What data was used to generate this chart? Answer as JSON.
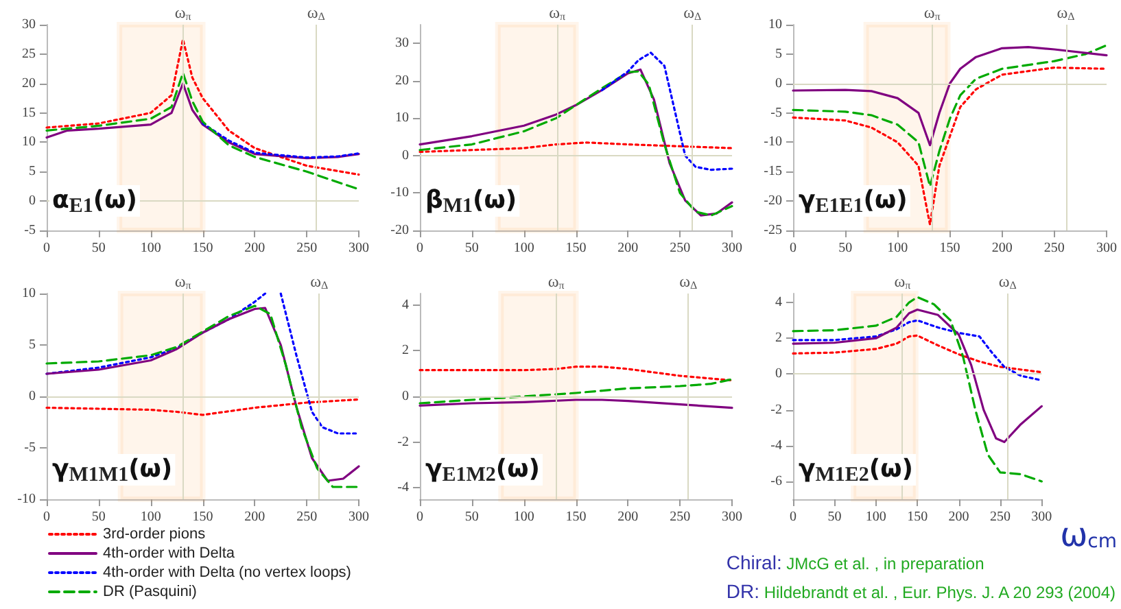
{
  "chart_data": [
    {
      "type": "line",
      "title": "α$_{E1}$(ω)",
      "marker": "none",
      "legend": "bottom",
      "xlim": [
        0,
        300
      ],
      "xticks": [
        0,
        50,
        100,
        150,
        200,
        250,
        300
      ],
      "ylim": [
        -5,
        30
      ],
      "yticks": [
        -5,
        0,
        5,
        10,
        15,
        20,
        25,
        30
      ],
      "ref_lines": [
        {
          "axis": "x",
          "value": 131,
          "label": "ω$_{π}$",
          "color": "#d9d9c3"
        },
        {
          "axis": "x",
          "value": 259,
          "label": "ω$_{Δ}$",
          "color": "#d9d9c3"
        },
        {
          "axis": "y",
          "value": 0,
          "label": null,
          "color": "#d9d9c3"
        }
      ],
      "bands": [
        {
          "axis": "x",
          "from": 70,
          "to": 150,
          "label": null,
          "color": "#ff8000"
        }
      ],
      "series": [
        {
          "name": "3rd-order pions",
          "color": "#ff0000",
          "line_style": "dotted",
          "x": [
            0,
            50,
            100,
            120,
            131,
            140,
            150,
            175,
            200,
            250,
            300
          ],
          "values": [
            12.5,
            13.2,
            15,
            18,
            27.5,
            21,
            17.5,
            12,
            9,
            6,
            4.5
          ]
        },
        {
          "name": "4th-order with Delta",
          "color": "#800080",
          "line_style": "solid",
          "x": [
            0,
            20,
            50,
            100,
            120,
            131,
            140,
            150,
            175,
            200,
            250,
            280,
            300
          ],
          "values": [
            10.8,
            12,
            12.3,
            13,
            15,
            20,
            15.5,
            13,
            10,
            8,
            7.3,
            7.5,
            8
          ]
        },
        {
          "name": "4th-order with Delta (no vertex loops)",
          "color": "#0000ff",
          "line_style": "dotted",
          "x": [
            150,
            175,
            200,
            250,
            280,
            300
          ],
          "values": [
            13.2,
            10.3,
            8.2,
            7.4,
            7.6,
            8.1
          ]
        },
        {
          "name": "DR (Pasquini)",
          "color": "#00aa00",
          "line_style": "dashed",
          "x": [
            0,
            50,
            100,
            120,
            131,
            140,
            150,
            175,
            200,
            250,
            300
          ],
          "values": [
            12,
            12.8,
            14,
            16,
            21.8,
            17,
            13.5,
            9.5,
            7.5,
            5,
            2
          ]
        }
      ]
    },
    {
      "type": "line",
      "title": "β$_{M1}$(ω)",
      "marker": "none",
      "xlim": [
        0,
        300
      ],
      "xticks": [
        0,
        50,
        100,
        150,
        200,
        250,
        300
      ],
      "ylim": [
        -20,
        35
      ],
      "yticks": [
        -20,
        -10,
        0,
        10,
        20,
        30
      ],
      "ref_lines": [
        {
          "axis": "x",
          "value": 132,
          "label": "ω$_{π}$",
          "color": "#d9d9c3"
        },
        {
          "axis": "x",
          "value": 262,
          "label": "ω$_{Δ}$",
          "color": "#d9d9c3"
        },
        {
          "axis": "y",
          "value": 0,
          "label": null,
          "color": "#d9d9c3"
        }
      ],
      "bands": [
        {
          "axis": "x",
          "from": 75,
          "to": 150,
          "label": null,
          "color": "#ff8000"
        }
      ],
      "series": [
        {
          "color": "#ff0000",
          "line_style": "dotted",
          "x": [
            0,
            50,
            100,
            131,
            160,
            200,
            250,
            300
          ],
          "values": [
            1,
            1.5,
            2,
            3,
            3.5,
            3,
            2.5,
            2
          ]
        },
        {
          "color": "#800080",
          "line_style": "solid",
          "x": [
            0,
            50,
            100,
            131,
            150,
            175,
            200,
            212,
            225,
            240,
            255,
            270,
            285,
            300
          ],
          "values": [
            3,
            5.2,
            8,
            11,
            13.5,
            17.5,
            22,
            23,
            15,
            -2,
            -12,
            -16,
            -15.5,
            -12.5
          ]
        },
        {
          "color": "#00aa00",
          "line_style": "dashed",
          "x": [
            0,
            50,
            100,
            131,
            150,
            175,
            200,
            210,
            220,
            235,
            250,
            265,
            280,
            300
          ],
          "values": [
            1.5,
            3,
            6.5,
            10,
            13.5,
            18,
            22.3,
            22.5,
            19,
            3,
            -10,
            -15,
            -16,
            -13.5
          ]
        },
        {
          "color": "#0000ff",
          "line_style": "dotted",
          "x": [
            175,
            200,
            210,
            222,
            235,
            245,
            255,
            265,
            280,
            300
          ],
          "values": [
            17.5,
            22.5,
            25.5,
            27.5,
            24,
            12,
            0,
            -3,
            -3.8,
            -3.5
          ]
        }
      ]
    },
    {
      "type": "line",
      "title": "γ$_{E1E1}$(ω)",
      "marker": "none",
      "xlim": [
        0,
        300
      ],
      "xticks": [
        0,
        50,
        100,
        150,
        200,
        250,
        300
      ],
      "ylim": [
        -25,
        10
      ],
      "yticks": [
        -25,
        -20,
        -15,
        -10,
        -5,
        0,
        5,
        10
      ],
      "ref_lines": [
        {
          "axis": "x",
          "value": 133,
          "label": "ω$_{π}$",
          "color": "#d9d9c3"
        },
        {
          "axis": "x",
          "value": 261,
          "label": "ω$_{Δ}$",
          "color": "#d9d9c3"
        },
        {
          "axis": "y",
          "value": 0,
          "label": null,
          "color": "#d9d9c3"
        }
      ],
      "bands": [
        {
          "axis": "x",
          "from": 70,
          "to": 148,
          "label": null,
          "color": "#ff8000"
        }
      ],
      "series": [
        {
          "color": "#ff0000",
          "line_style": "dotted",
          "x": [
            0,
            50,
            75,
            100,
            120,
            131,
            140,
            150,
            160,
            175,
            200,
            250,
            300
          ],
          "values": [
            -5.8,
            -6.3,
            -7.5,
            -10,
            -14,
            -24,
            -14,
            -9,
            -4,
            -1,
            1.5,
            2.7,
            2.5
          ]
        },
        {
          "color": "#00aa00",
          "line_style": "dashed",
          "x": [
            0,
            50,
            75,
            100,
            120,
            131,
            140,
            150,
            160,
            175,
            200,
            250,
            280,
            300
          ],
          "values": [
            -4.5,
            -4.8,
            -5.4,
            -7,
            -10,
            -17.5,
            -11.5,
            -6,
            -2,
            0.8,
            2.5,
            3.8,
            5,
            6.5
          ]
        },
        {
          "color": "#800080",
          "line_style": "solid",
          "x": [
            0,
            50,
            75,
            100,
            120,
            131,
            140,
            150,
            160,
            175,
            200,
            225,
            250,
            300
          ],
          "values": [
            -1.2,
            -1.1,
            -1.3,
            -2.5,
            -5,
            -10.5,
            -5,
            0,
            2.5,
            4.5,
            6,
            6.2,
            5.8,
            4.8
          ]
        }
      ]
    },
    {
      "type": "line",
      "title": "γ$_{M1M1}$(ω)",
      "marker": "none",
      "xlim": [
        0,
        300
      ],
      "xticks": [
        0,
        50,
        100,
        150,
        200,
        250,
        300
      ],
      "ylim": [
        -10,
        10
      ],
      "yticks": [
        -10,
        -5,
        0,
        5,
        10
      ],
      "ref_lines": [
        {
          "axis": "x",
          "value": 131,
          "label": "ω$_{π}$",
          "color": "#d9d9c3"
        },
        {
          "axis": "x",
          "value": 262,
          "label": "ω$_{Δ}$",
          "color": "#d9d9c3"
        },
        {
          "axis": "y",
          "value": 0,
          "label": null,
          "color": "#d9d9c3"
        }
      ],
      "bands": [
        {
          "axis": "x",
          "from": 71,
          "to": 150,
          "label": null,
          "color": "#ff8000"
        }
      ],
      "series": [
        {
          "color": "#ff0000",
          "line_style": "dotted",
          "x": [
            0,
            50,
            100,
            125,
            150,
            200,
            250,
            300
          ],
          "values": [
            -1.1,
            -1.2,
            -1.3,
            -1.5,
            -1.8,
            -1.1,
            -0.6,
            -0.3
          ]
        },
        {
          "color": "#0000ff",
          "line_style": "dotted",
          "x": [
            0,
            50,
            100,
            125,
            150,
            175,
            200,
            210,
            217,
            225,
            240,
            255,
            265,
            280,
            300
          ],
          "values": [
            2.2,
            2.8,
            3.8,
            4.7,
            6.2,
            7.5,
            9.2,
            10,
            null,
            10,
            4,
            -1.5,
            -3,
            -3.6,
            -3.6
          ]
        },
        {
          "color": "#800080",
          "line_style": "solid",
          "x": [
            0,
            50,
            100,
            125,
            150,
            175,
            200,
            210,
            225,
            240,
            255,
            270,
            285,
            300
          ],
          "values": [
            2.2,
            2.6,
            3.5,
            4.6,
            6.2,
            7.5,
            8.5,
            8.6,
            5,
            -1,
            -6,
            -8.2,
            -8,
            -6.8
          ]
        },
        {
          "color": "#00aa00",
          "line_style": "dashed",
          "x": [
            0,
            50,
            100,
            125,
            150,
            175,
            200,
            215,
            230,
            245,
            260,
            275,
            300
          ],
          "values": [
            3.2,
            3.4,
            4,
            4.8,
            6.3,
            7.8,
            8.8,
            8,
            3,
            -3,
            -7,
            -8.8,
            -8.8
          ]
        }
      ]
    },
    {
      "type": "line",
      "title": "γ$_{E1M2}$(ω)",
      "marker": "none",
      "xlim": [
        0,
        300
      ],
      "xticks": [
        0,
        50,
        100,
        150,
        200,
        250,
        300
      ],
      "ylim": [
        -4.5,
        4.5
      ],
      "yticks": [
        -4,
        -2,
        0,
        2,
        4
      ],
      "ref_lines": [
        {
          "axis": "x",
          "value": 131,
          "label": "ω$_{π}$",
          "color": "#d9d9c3"
        },
        {
          "axis": "x",
          "value": 258,
          "label": "ω$_{Δ}$",
          "color": "#d9d9c3"
        },
        {
          "axis": "y",
          "value": 0,
          "label": null,
          "color": "#d9d9c3"
        }
      ],
      "bands": [
        {
          "axis": "x",
          "from": 78,
          "to": 150,
          "label": null,
          "color": "#ff8000"
        }
      ],
      "series": [
        {
          "color": "#ff0000",
          "line_style": "dotted",
          "x": [
            0,
            50,
            100,
            131,
            150,
            175,
            200,
            250,
            300
          ],
          "values": [
            1.15,
            1.15,
            1.15,
            1.2,
            1.3,
            1.3,
            1.2,
            0.9,
            0.7
          ]
        },
        {
          "color": "#00aa00",
          "line_style": "dashed",
          "x": [
            0,
            50,
            100,
            150,
            200,
            250,
            280,
            300
          ],
          "values": [
            -0.3,
            -0.15,
            0,
            0.15,
            0.35,
            0.45,
            0.55,
            0.75
          ]
        },
        {
          "color": "#800080",
          "line_style": "solid",
          "x": [
            0,
            50,
            100,
            150,
            175,
            200,
            250,
            300
          ],
          "values": [
            -0.4,
            -0.3,
            -0.25,
            -0.15,
            -0.15,
            -0.2,
            -0.35,
            -0.5
          ]
        }
      ]
    },
    {
      "type": "line",
      "title": "γ$_{M1E2}$(ω)",
      "xlabel": "ω$_{cm}$",
      "marker": "none",
      "xlim": [
        0,
        300
      ],
      "xticks": [
        0,
        50,
        100,
        150,
        200,
        250,
        300
      ],
      "ylim": [
        -7,
        4.5
      ],
      "yticks": [
        -6,
        -4,
        -2,
        0,
        2,
        4
      ],
      "ref_lines": [
        {
          "axis": "x",
          "value": 132,
          "label": "ω$_{π}$",
          "color": "#d9d9c3"
        },
        {
          "axis": "x",
          "value": 259,
          "label": "ω$_{Δ}$",
          "color": "#d9d9c3"
        },
        {
          "axis": "y",
          "value": 0,
          "label": null,
          "color": "#d9d9c3"
        }
      ],
      "bands": [
        {
          "axis": "x",
          "from": 73,
          "to": 148,
          "label": null,
          "color": "#ff8000"
        }
      ],
      "annotations": [
        "Chiral: JMcG et al. , in preparation",
        "DR: Hildebrandt et al. , Eur. Phys. J. A 20 293 (2004)"
      ],
      "series": [
        {
          "color": "#ff0000",
          "line_style": "dotted",
          "x": [
            0,
            50,
            100,
            125,
            140,
            150,
            175,
            200,
            225,
            250,
            300
          ],
          "values": [
            1.15,
            1.2,
            1.4,
            1.7,
            2.1,
            2.15,
            1.6,
            1.1,
            0.7,
            0.4,
            0.1
          ]
        },
        {
          "color": "#0000ff",
          "line_style": "dotted",
          "x": [
            0,
            50,
            100,
            125,
            140,
            150,
            175,
            200,
            225,
            240,
            255,
            275,
            300
          ],
          "values": [
            1.9,
            1.9,
            2.1,
            2.5,
            2.9,
            3,
            2.6,
            2.3,
            2.1,
            1.2,
            0.4,
            -0.1,
            -0.35
          ]
        },
        {
          "color": "#800080",
          "line_style": "solid",
          "x": [
            0,
            50,
            100,
            125,
            140,
            150,
            175,
            200,
            215,
            230,
            245,
            255,
            275,
            300
          ],
          "values": [
            1.7,
            1.75,
            2,
            2.6,
            3.4,
            3.6,
            3.3,
            2.2,
            0.5,
            -2,
            -3.6,
            -3.8,
            -2.8,
            -1.8
          ]
        },
        {
          "color": "#00aa00",
          "line_style": "dashed",
          "x": [
            0,
            50,
            100,
            125,
            140,
            150,
            170,
            190,
            205,
            220,
            235,
            250,
            275,
            300
          ],
          "values": [
            2.4,
            2.45,
            2.7,
            3.2,
            4,
            4.3,
            3.9,
            3,
            1,
            -2,
            -4.5,
            -5.5,
            -5.6,
            -6
          ]
        }
      ]
    }
  ]
}
